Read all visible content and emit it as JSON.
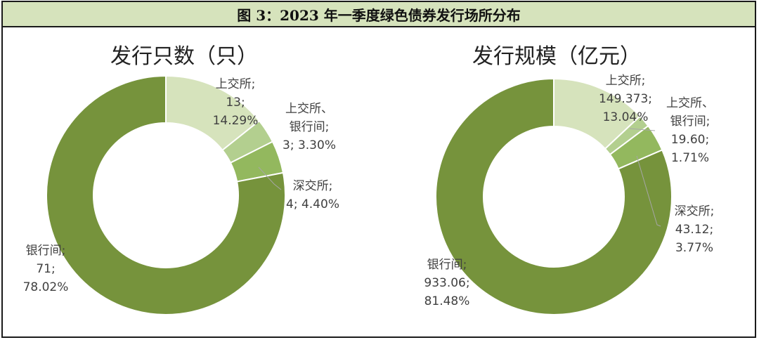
{
  "figure_title": "图 3：2023 年一季度绿色债券发行场所分布",
  "colors": {
    "header_bg": "#d6e3bc",
    "slice_light": "#d6e3bc",
    "slice_mid": "#b3cf8f",
    "slice_mid2": "#93b85e",
    "slice_dark": "#76933c",
    "leader": "#a6a6a6"
  },
  "chart_data": [
    {
      "type": "pie",
      "title": "发行只数（只）",
      "donut": true,
      "slices": [
        {
          "name": "上交所",
          "value": 13,
          "value_label": "13",
          "percent_label": "14.29%",
          "color": "#d6e3bc",
          "label_lines": [
            "上交所;",
            "13;",
            "14.29%"
          ]
        },
        {
          "name": "上交所、银行间",
          "value": 3,
          "value_label": "3",
          "percent_label": "3.30%",
          "color": "#b3cf8f",
          "label_lines": [
            "上交所、",
            "银行间;",
            "3; 3.30%"
          ]
        },
        {
          "name": "深交所",
          "value": 4,
          "value_label": "4",
          "percent_label": "4.40%",
          "color": "#93b85e",
          "label_lines": [
            "深交所;",
            "4; 4.40%"
          ]
        },
        {
          "name": "银行间",
          "value": 71,
          "value_label": "71",
          "percent_label": "78.02%",
          "color": "#76933c",
          "label_lines": [
            "银行间;",
            "71;",
            "78.02%"
          ]
        }
      ]
    },
    {
      "type": "pie",
      "title": "发行规模（亿元）",
      "donut": true,
      "slices": [
        {
          "name": "上交所",
          "value": 149.373,
          "value_label": "149.373",
          "percent_label": "13.04%",
          "color": "#d6e3bc",
          "label_lines": [
            "上交所;",
            "149.373;",
            "13.04%"
          ]
        },
        {
          "name": "上交所、银行间",
          "value": 19.6,
          "value_label": "19.60",
          "percent_label": "1.71%",
          "color": "#b3cf8f",
          "label_lines": [
            "上交所、",
            "银行间;",
            "19.60;",
            "1.71%"
          ]
        },
        {
          "name": "深交所",
          "value": 43.12,
          "value_label": "43.12",
          "percent_label": "3.77%",
          "color": "#93b85e",
          "label_lines": [
            "深交所;",
            "43.12;",
            "3.77%"
          ]
        },
        {
          "name": "银行间",
          "value": 933.06,
          "value_label": "933.06",
          "percent_label": "81.48%",
          "color": "#76933c",
          "label_lines": [
            "银行间;",
            "933.06;",
            "81.48%"
          ]
        }
      ]
    }
  ]
}
